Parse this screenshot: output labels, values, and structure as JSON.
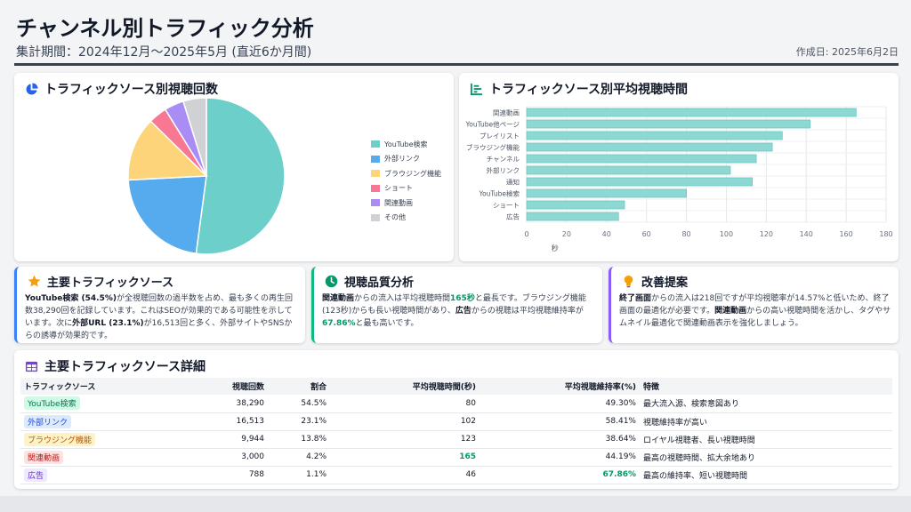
{
  "header": {
    "title": "チャンネル別トラフィック分析",
    "subtitle": "集計期間：2024年12月〜2025年5月 (直近6か月間)",
    "created": "作成日: 2025年6月2日"
  },
  "pie_title": "トラフィックソース別視聴回数",
  "bar_title": "トラフィックソース別平均視聴時間",
  "chart_data": [
    {
      "type": "pie",
      "title": "トラフィックソース別視聴回数",
      "categories": [
        "YouTube検索",
        "外部リンク",
        "ブラウジング機能",
        "ショート",
        "関連動画",
        "その他"
      ],
      "values": [
        54.5,
        23.1,
        13.8,
        4.0,
        4.2,
        5.0
      ],
      "colors": [
        "#6ccfca",
        "#56aaee",
        "#fdd47a",
        "#f87894",
        "#a98cf4",
        "#cfd1d5"
      ],
      "legend": "right"
    },
    {
      "type": "bar",
      "orientation": "horizontal",
      "title": "トラフィックソース別平均視聴時間",
      "categories": [
        "関連動画",
        "YouTube他ページ",
        "プレイリスト",
        "ブラウジング機能",
        "チャンネル",
        "外部リンク",
        "通知",
        "YouTube検索",
        "ショート",
        "広告"
      ],
      "values": [
        165,
        142,
        128,
        123,
        115,
        102,
        113,
        80,
        49,
        46
      ],
      "xlabel": "秒",
      "xlim": [
        0,
        180
      ],
      "xticks": [
        0,
        20,
        40,
        60,
        80,
        100,
        120,
        140,
        160,
        180
      ],
      "color": "#8dd8d3",
      "grid": true
    }
  ],
  "insights": {
    "main_title": "主要トラフィックソース",
    "quality_title": "視聴品質分析",
    "improve_title": "改善提案"
  },
  "table": {
    "title": "主要トラフィックソース詳細",
    "headers": [
      "トラフィックソース",
      "視聴回数",
      "割合",
      "平均視聴時間(秒)",
      "平均視聴維持率(%)",
      "特徴"
    ],
    "rows": [
      {
        "source": "YouTube検索",
        "views": "38,290",
        "share": "54.5%",
        "avg_time": "80",
        "retention": "49.30%",
        "feature": "最大流入源、検索意図あり"
      },
      {
        "source": "外部リンク",
        "views": "16,513",
        "share": "23.1%",
        "avg_time": "102",
        "retention": "58.41%",
        "feature": "視聴維持率が高い"
      },
      {
        "source": "ブラウジング機能",
        "views": "9,944",
        "share": "13.8%",
        "avg_time": "123",
        "retention": "38.64%",
        "feature": "ロイヤル視聴者、長い視聴時間"
      },
      {
        "source": "関連動画",
        "views": "3,000",
        "share": "4.2%",
        "avg_time": "165",
        "retention": "44.19%",
        "feature": "最高の視聴時間、拡大余地あり"
      },
      {
        "source": "広告",
        "views": "788",
        "share": "1.1%",
        "avg_time": "46",
        "retention": "67.86%",
        "feature": "最高の維持率、短い視聴時間"
      }
    ]
  }
}
